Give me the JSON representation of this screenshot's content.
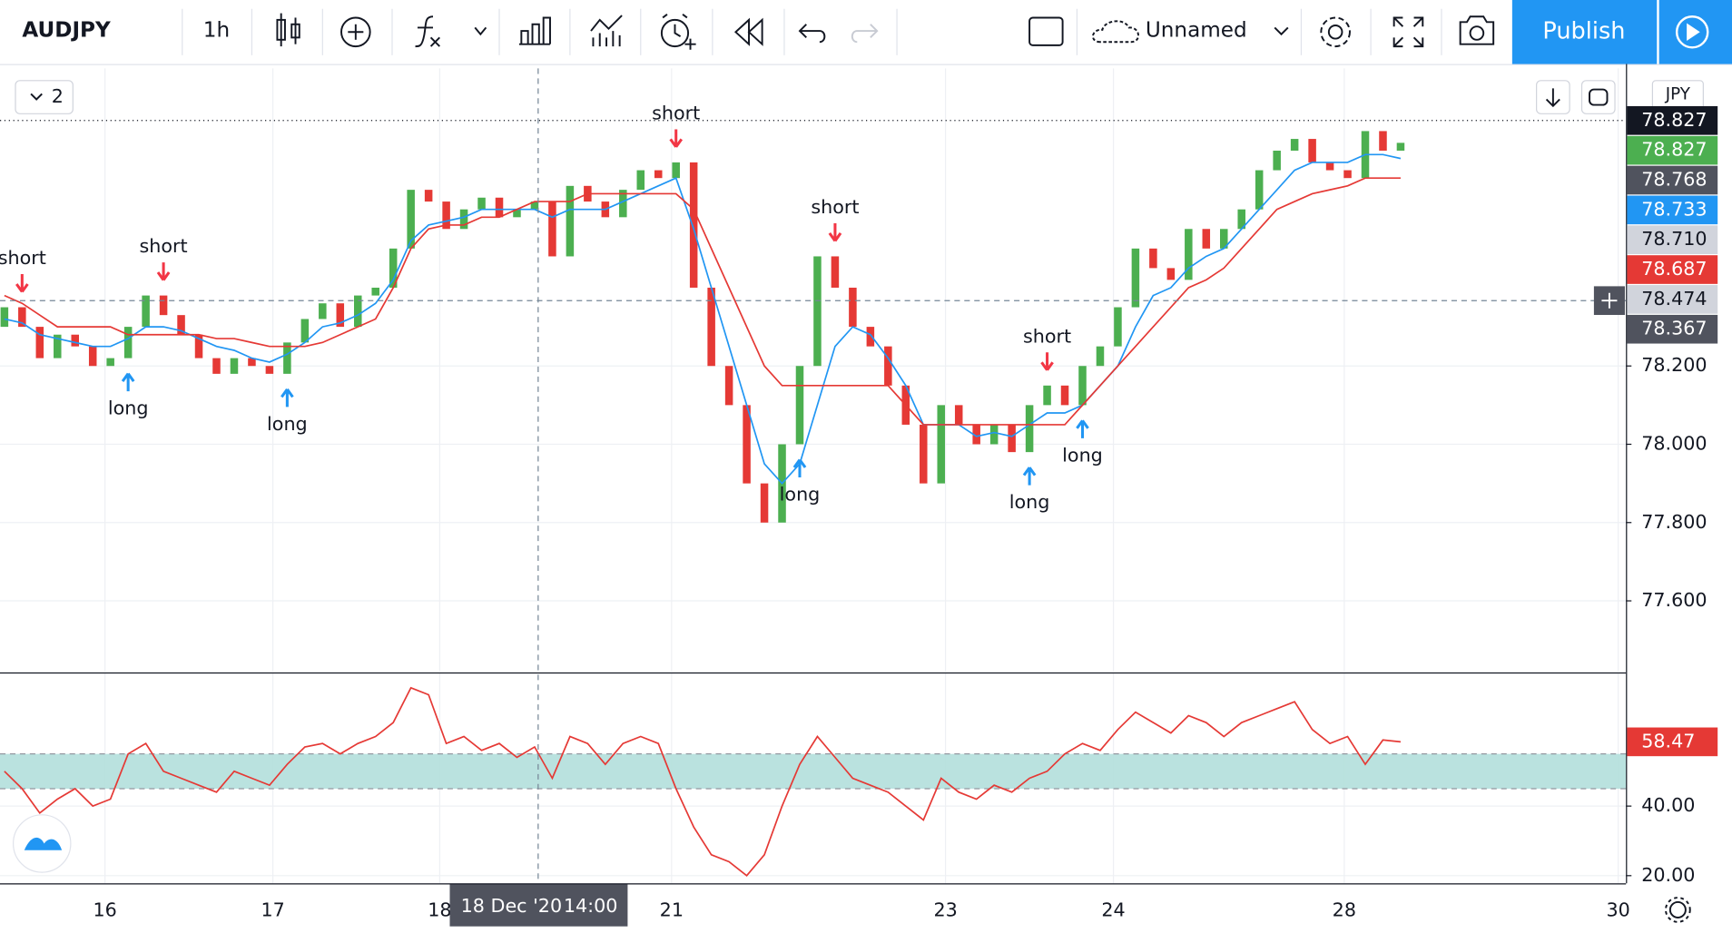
{
  "ui": {
    "interval": "1h",
    "layout_name": "Unnamed",
    "publish": "Publish",
    "legend_count": "2",
    "currency": "JPY"
  },
  "chart_data": [
    {
      "type": "candlestick",
      "title": "AUDJPY",
      "up_color": "#4caf50",
      "down_color": "#e53935",
      "open": [
        78.3,
        78.35,
        78.3,
        78.22,
        78.28,
        78.25,
        78.2,
        78.22,
        78.3,
        78.38,
        78.33,
        78.28,
        78.22,
        78.18,
        78.22,
        78.2,
        78.18,
        78.26,
        78.32,
        78.36,
        78.3,
        78.38,
        78.4,
        78.5,
        78.65,
        78.62,
        78.55,
        78.6,
        78.63,
        78.58,
        78.6,
        78.62,
        78.48,
        78.66,
        78.62,
        78.58,
        78.65,
        78.7,
        78.68,
        78.72,
        78.4,
        78.2,
        78.1,
        77.9,
        77.8,
        78.0,
        78.2,
        78.48,
        78.4,
        78.3,
        78.25,
        78.15,
        78.05,
        77.9,
        78.1,
        78.05,
        78.0,
        78.05,
        77.98,
        78.1,
        78.15,
        78.1,
        78.2,
        78.25,
        78.35,
        78.5,
        78.45,
        78.42,
        78.55,
        78.5,
        78.55,
        78.6,
        78.7,
        78.75,
        78.78,
        78.72,
        78.7,
        78.68,
        78.8,
        78.75
      ],
      "close": [
        78.35,
        78.3,
        78.22,
        78.28,
        78.25,
        78.2,
        78.22,
        78.3,
        78.38,
        78.33,
        78.28,
        78.22,
        78.18,
        78.22,
        78.2,
        78.18,
        78.26,
        78.32,
        78.36,
        78.3,
        78.38,
        78.4,
        78.5,
        78.65,
        78.62,
        78.55,
        78.6,
        78.63,
        78.58,
        78.6,
        78.62,
        78.48,
        78.66,
        78.62,
        78.58,
        78.65,
        78.7,
        78.68,
        78.72,
        78.4,
        78.2,
        78.1,
        77.9,
        77.8,
        78.0,
        78.2,
        78.48,
        78.4,
        78.3,
        78.25,
        78.15,
        78.05,
        77.9,
        78.1,
        78.05,
        78.0,
        78.05,
        77.98,
        78.1,
        78.15,
        78.1,
        78.2,
        78.25,
        78.35,
        78.5,
        78.45,
        78.42,
        78.55,
        78.5,
        78.55,
        78.6,
        78.7,
        78.75,
        78.78,
        78.72,
        78.7,
        78.68,
        78.8,
        78.75,
        78.77
      ],
      "series": [
        {
          "color": "#2196f3",
          "values": [
            78.32,
            78.31,
            78.28,
            78.27,
            78.26,
            78.25,
            78.25,
            78.27,
            78.3,
            78.3,
            78.29,
            78.27,
            78.25,
            78.24,
            78.22,
            78.21,
            78.23,
            78.26,
            78.3,
            78.31,
            78.33,
            78.36,
            78.42,
            78.52,
            78.56,
            78.57,
            78.58,
            78.6,
            78.6,
            78.6,
            78.6,
            78.58,
            78.6,
            78.6,
            78.6,
            78.62,
            78.64,
            78.66,
            78.68,
            78.55,
            78.4,
            78.25,
            78.1,
            77.95,
            77.9,
            77.95,
            78.1,
            78.25,
            78.3,
            78.28,
            78.22,
            78.15,
            78.05,
            78.05,
            78.05,
            78.02,
            78.03,
            78.02,
            78.05,
            78.08,
            78.08,
            78.1,
            78.15,
            78.2,
            78.3,
            78.38,
            78.4,
            78.45,
            78.48,
            78.5,
            78.55,
            78.6,
            78.65,
            78.7,
            78.72,
            78.72,
            78.72,
            78.74,
            78.74,
            78.73
          ]
        },
        {
          "color": "#e53935",
          "values": [
            78.38,
            78.36,
            78.33,
            78.3,
            78.3,
            78.3,
            78.3,
            78.28,
            78.28,
            78.28,
            78.28,
            78.28,
            78.27,
            78.27,
            78.26,
            78.25,
            78.25,
            78.25,
            78.26,
            78.28,
            78.3,
            78.32,
            78.4,
            78.5,
            78.55,
            78.56,
            78.56,
            78.58,
            78.58,
            78.6,
            78.62,
            78.62,
            78.62,
            78.64,
            78.64,
            78.64,
            78.64,
            78.64,
            78.64,
            78.6,
            78.5,
            78.4,
            78.3,
            78.2,
            78.15,
            78.15,
            78.15,
            78.15,
            78.15,
            78.15,
            78.15,
            78.1,
            78.05,
            78.05,
            78.05,
            78.05,
            78.05,
            78.05,
            78.05,
            78.05,
            78.05,
            78.1,
            78.15,
            78.2,
            78.25,
            78.3,
            78.35,
            78.4,
            78.42,
            78.45,
            78.5,
            78.55,
            78.6,
            78.62,
            78.64,
            78.65,
            78.66,
            78.68,
            78.68,
            78.68
          ]
        }
      ],
      "xlim": [
        -0.25,
        91.75
      ],
      "xticks": [
        {
          "value": 5.69,
          "label": "16"
        },
        {
          "value": 15.19,
          "label": "17"
        },
        {
          "value": 24.63,
          "label": "18"
        },
        {
          "value": 37.75,
          "label": "21"
        },
        {
          "value": 53.25,
          "label": "23"
        },
        {
          "value": 62.75,
          "label": "24"
        },
        {
          "value": 75.81,
          "label": "28"
        },
        {
          "value": 91.31,
          "label": "30"
        }
      ],
      "ylim": [
        77.42,
        78.96
      ],
      "yticks": [
        {
          "value": 78.2,
          "label": "78.200"
        },
        {
          "value": 78.0,
          "label": "78.000"
        },
        {
          "value": 77.8,
          "label": "77.800"
        },
        {
          "value": 77.6,
          "label": "77.600"
        }
      ],
      "grid": true,
      "price_labels": [
        {
          "value": 78.827,
          "label": "78.827",
          "color": "#131722",
          "text_color": "#ffffff"
        },
        {
          "value": 78.827,
          "label": "78.827",
          "color": "#4caf50",
          "text_color": "#ffffff"
        },
        {
          "value": 78.768,
          "label": "78.768",
          "color": "#50535e",
          "text_color": "#ffffff"
        },
        {
          "value": 78.733,
          "label": "78.733",
          "color": "#2196f3",
          "text_color": "#ffffff"
        },
        {
          "value": 78.71,
          "label": "78.710",
          "color": "#d1d4dc",
          "text_color": "#131722"
        },
        {
          "value": 78.687,
          "label": "78.687",
          "color": "#e53935",
          "text_color": "#ffffff"
        },
        {
          "value": 78.474,
          "label": "78.474",
          "color": "#d1d4dc",
          "text_color": "#131722"
        },
        {
          "value": 78.367,
          "label": "78.367",
          "color": "#50535e",
          "text_color": "#ffffff"
        }
      ],
      "signals": [
        {
          "index": 1,
          "label": "short"
        },
        {
          "index": 9,
          "label": "short"
        },
        {
          "index": 38,
          "label": "short"
        },
        {
          "index": 47,
          "label": "short"
        },
        {
          "index": 59,
          "label": "short"
        },
        {
          "index": 7,
          "label": "long"
        },
        {
          "index": 16,
          "label": "long"
        },
        {
          "index": 45,
          "label": "long"
        },
        {
          "index": 58,
          "label": "long"
        },
        {
          "index": 61,
          "label": "long"
        }
      ],
      "crosshair": {
        "index": 30.2,
        "date": "18 Dec '20",
        "time": "14:00"
      }
    },
    {
      "type": "line",
      "color": "#e53935",
      "values": [
        50,
        45,
        38,
        42,
        45,
        40,
        42,
        55,
        58,
        50,
        48,
        46,
        44,
        50,
        48,
        46,
        52,
        57,
        58,
        55,
        58,
        60,
        64,
        74,
        72,
        58,
        60,
        56,
        58,
        54,
        57,
        48,
        60,
        58,
        52,
        58,
        60,
        58,
        45,
        34,
        26,
        24,
        20,
        26,
        40,
        52,
        60,
        54,
        48,
        46,
        44,
        40,
        36,
        48,
        44,
        42,
        46,
        44,
        48,
        50,
        55,
        58,
        56,
        62,
        67,
        64,
        61,
        66,
        64,
        60,
        64,
        66,
        68,
        70,
        62,
        58,
        60,
        52,
        59,
        58.47
      ],
      "value_labels": {
        "last": "58.47"
      },
      "band": [
        45,
        55
      ],
      "band_color": "#b2dfdb",
      "ylim": [
        17.8,
        78.1
      ],
      "yticks": [
        {
          "value": 40,
          "label": "40.00"
        },
        {
          "value": 20,
          "label": "20.00"
        }
      ]
    }
  ]
}
